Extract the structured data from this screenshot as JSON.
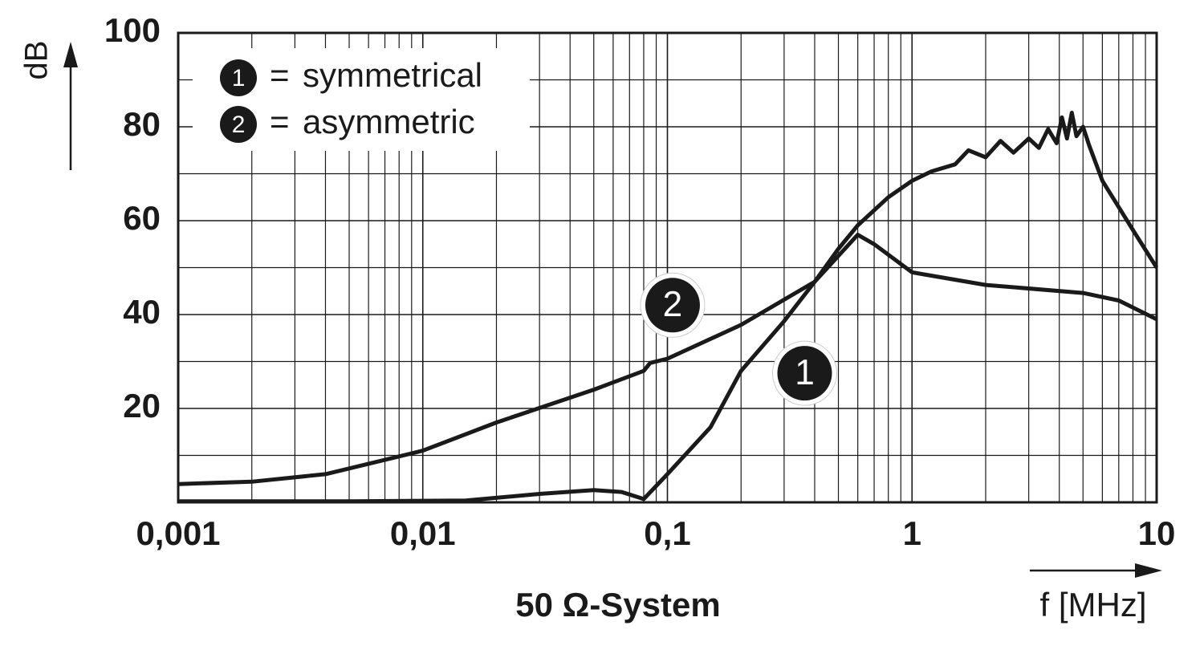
{
  "chart_data": {
    "type": "line",
    "x_label": "f [MHz]",
    "y_label": "dB",
    "subtitle": "50 Ω-System",
    "xscale": "log",
    "xlim": [
      0.001,
      10
    ],
    "xticks": [
      {
        "value": 0.001,
        "label": "0,001"
      },
      {
        "value": 0.01,
        "label": "0,01"
      },
      {
        "value": 0.1,
        "label": "0,1"
      },
      1,
      10
    ],
    "ylim": [
      0,
      100
    ],
    "yticks": [
      20,
      40,
      60,
      80,
      100
    ],
    "grid": true,
    "legend": "upper left",
    "legend_separator": "=",
    "series": [
      {
        "name": "symmetrical",
        "marker": "1",
        "color": "#1a1a1a",
        "x": [
          0.001,
          0.005,
          0.015,
          0.03,
          0.05,
          0.065,
          0.08,
          0.1,
          0.15,
          0.2,
          0.3,
          0.4,
          0.5,
          0.6,
          0.8,
          1,
          1.2,
          1.5,
          1.7,
          2,
          2.3,
          2.6,
          3,
          3.3,
          3.6,
          3.9,
          4.1,
          4.3,
          4.5,
          4.7,
          5,
          5.3,
          6,
          8,
          10
        ],
        "values": [
          0.2,
          0.2,
          0.4,
          1.8,
          2.6,
          2.2,
          0.7,
          6,
          16,
          28,
          38.6,
          47,
          54,
          59,
          65,
          68.5,
          70.5,
          72,
          75,
          73.5,
          77,
          74.5,
          77.5,
          75.5,
          79.5,
          76.5,
          82,
          77.5,
          83,
          78,
          80,
          76,
          68.5,
          58,
          50
        ]
      },
      {
        "name": "asymmetric",
        "marker": "2",
        "color": "#1a1a1a",
        "x": [
          0.001,
          0.002,
          0.004,
          0.01,
          0.02,
          0.05,
          0.08,
          0.085,
          0.1,
          0.2,
          0.4,
          0.6,
          0.7,
          1,
          2,
          5,
          7,
          10
        ],
        "values": [
          3.9,
          4.4,
          6,
          11,
          17,
          24,
          28,
          29.7,
          30.6,
          37.8,
          47,
          57,
          55,
          49,
          46.3,
          44.6,
          43,
          39
        ]
      }
    ],
    "annotations": [
      {
        "text": "2",
        "x": 0.105,
        "y": 42
      },
      {
        "text": "1",
        "x": 0.364,
        "y": 27.5
      }
    ]
  }
}
